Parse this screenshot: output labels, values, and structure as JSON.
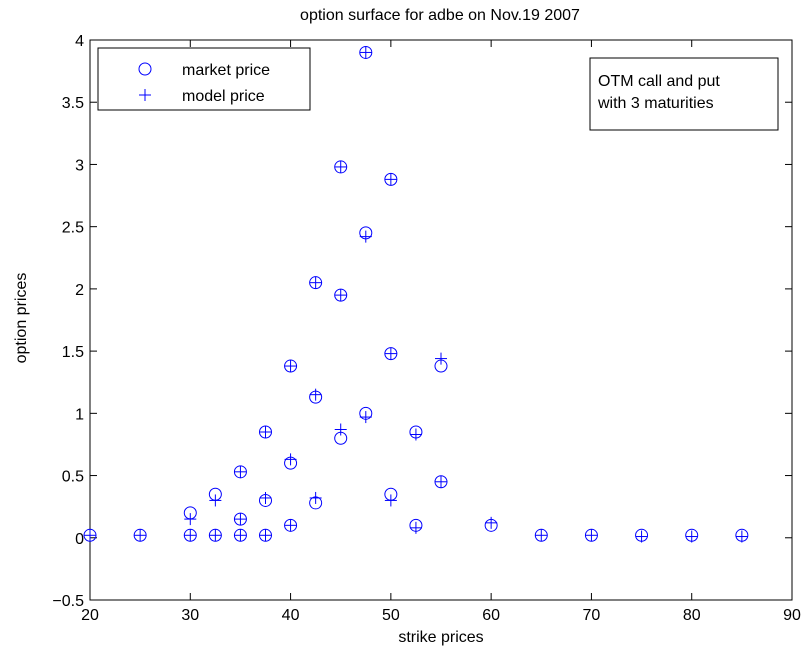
{
  "chart_data": {
    "type": "scatter",
    "title": "option surface for adbe on Nov.19 2007",
    "xlabel": "strike prices",
    "ylabel": "option prices",
    "xlim": [
      20,
      90
    ],
    "ylim": [
      -0.5,
      4
    ],
    "x_ticks": [
      20,
      30,
      40,
      50,
      60,
      70,
      80,
      90
    ],
    "y_ticks": [
      -0.5,
      0,
      0.5,
      1,
      1.5,
      2,
      2.5,
      3,
      3.5,
      4
    ],
    "x_tick_labels": [
      "20",
      "30",
      "40",
      "50",
      "60",
      "70",
      "80",
      "90"
    ],
    "y_tick_labels": [
      "−0.5",
      "0",
      "0.5",
      "1",
      "1.5",
      "2",
      "2.5",
      "3",
      "3.5",
      "4"
    ],
    "grid": false,
    "legend_position": "top-left",
    "annotation": [
      "OTM call and put",
      "with 3 maturities"
    ],
    "marker_color": "#0000ff",
    "series": [
      {
        "name": "market price",
        "marker": "circle",
        "points": [
          [
            20,
            0.02
          ],
          [
            25,
            0.02
          ],
          [
            30,
            0.02
          ],
          [
            30,
            0.2
          ],
          [
            32.5,
            0.02
          ],
          [
            32.5,
            0.35
          ],
          [
            35,
            0.02
          ],
          [
            35,
            0.15
          ],
          [
            35,
            0.53
          ],
          [
            37.5,
            0.02
          ],
          [
            37.5,
            0.3
          ],
          [
            37.5,
            0.85
          ],
          [
            40,
            0.1
          ],
          [
            40,
            0.6
          ],
          [
            40,
            1.38
          ],
          [
            42.5,
            0.28
          ],
          [
            42.5,
            1.13
          ],
          [
            42.5,
            2.05
          ],
          [
            45,
            0.8
          ],
          [
            45,
            1.95
          ],
          [
            45,
            2.98
          ],
          [
            47.5,
            1.0
          ],
          [
            47.5,
            2.45
          ],
          [
            47.5,
            3.9
          ],
          [
            50,
            0.35
          ],
          [
            50,
            1.48
          ],
          [
            50,
            2.88
          ],
          [
            52.5,
            0.1
          ],
          [
            52.5,
            0.85
          ],
          [
            55,
            0.45
          ],
          [
            55,
            1.38
          ],
          [
            60,
            0.1
          ],
          [
            65,
            0.02
          ],
          [
            70,
            0.02
          ],
          [
            75,
            0.02
          ],
          [
            80,
            0.02
          ],
          [
            85,
            0.02
          ]
        ]
      },
      {
        "name": "model price",
        "marker": "plus",
        "points": [
          [
            20,
            0.02
          ],
          [
            25,
            0.02
          ],
          [
            30,
            0.02
          ],
          [
            30,
            0.15
          ],
          [
            32.5,
            0.02
          ],
          [
            32.5,
            0.3
          ],
          [
            35,
            0.02
          ],
          [
            35,
            0.15
          ],
          [
            35,
            0.53
          ],
          [
            37.5,
            0.02
          ],
          [
            37.5,
            0.32
          ],
          [
            37.5,
            0.85
          ],
          [
            40,
            0.1
          ],
          [
            40,
            0.63
          ],
          [
            40,
            1.38
          ],
          [
            42.5,
            0.32
          ],
          [
            42.5,
            1.15
          ],
          [
            42.5,
            2.05
          ],
          [
            45,
            0.87
          ],
          [
            45,
            1.95
          ],
          [
            45,
            2.98
          ],
          [
            47.5,
            0.97
          ],
          [
            47.5,
            2.42
          ],
          [
            47.5,
            3.9
          ],
          [
            50,
            0.3
          ],
          [
            50,
            1.48
          ],
          [
            50,
            2.88
          ],
          [
            52.5,
            0.08
          ],
          [
            52.5,
            0.83
          ],
          [
            55,
            0.45
          ],
          [
            55,
            1.44
          ],
          [
            60,
            0.12
          ],
          [
            65,
            0.02
          ],
          [
            70,
            0.02
          ],
          [
            75,
            0.01
          ],
          [
            80,
            0.01
          ],
          [
            85,
            0.01
          ]
        ]
      }
    ]
  }
}
